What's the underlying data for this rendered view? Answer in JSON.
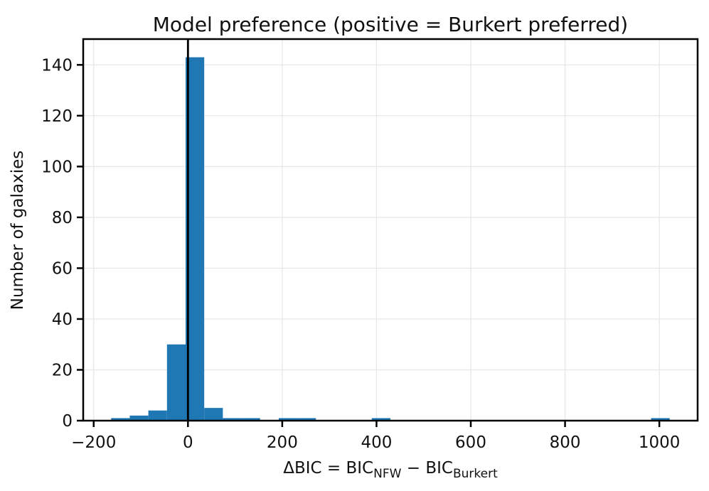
{
  "figure": {
    "background": "#ffffff"
  },
  "chart_data": {
    "type": "bar",
    "subtype": "histogram",
    "title": "Model preference (positive = Burkert preferred)",
    "xlabel": "ΔBIC = BIC_NFW − BIC_Burkert",
    "xlabel_rich": [
      {
        "text": "ΔBIC = BIC",
        "sub": false
      },
      {
        "text": "NFW",
        "sub": true
      },
      {
        "text": " − ",
        "sub": false
      },
      {
        "text": "BIC",
        "sub": false
      },
      {
        "text": "Burkert",
        "sub": true
      }
    ],
    "ylabel": "Number of galaxies",
    "bin_start": -163,
    "bin_width": 39.5,
    "counts": [
      1,
      2,
      4,
      30,
      143,
      5,
      1,
      1,
      0,
      1,
      1,
      0,
      0,
      0,
      1,
      0,
      0,
      0,
      0,
      0,
      0,
      0,
      0,
      0,
      0,
      0,
      0,
      0,
      0,
      1
    ],
    "xticks": [
      -200,
      0,
      200,
      400,
      600,
      800,
      1000
    ],
    "yticks": [
      0,
      20,
      40,
      60,
      80,
      100,
      120,
      140
    ],
    "xlim": [
      -222.25,
      1081.25
    ],
    "ylim": [
      0,
      150.15
    ],
    "vline_x": 0,
    "grid": true,
    "legend": null,
    "colors": {
      "bar": "#1f77b4",
      "grid": "#e6e6e6",
      "axis": "#000000",
      "vline": "#000000",
      "text": "#111111"
    }
  }
}
